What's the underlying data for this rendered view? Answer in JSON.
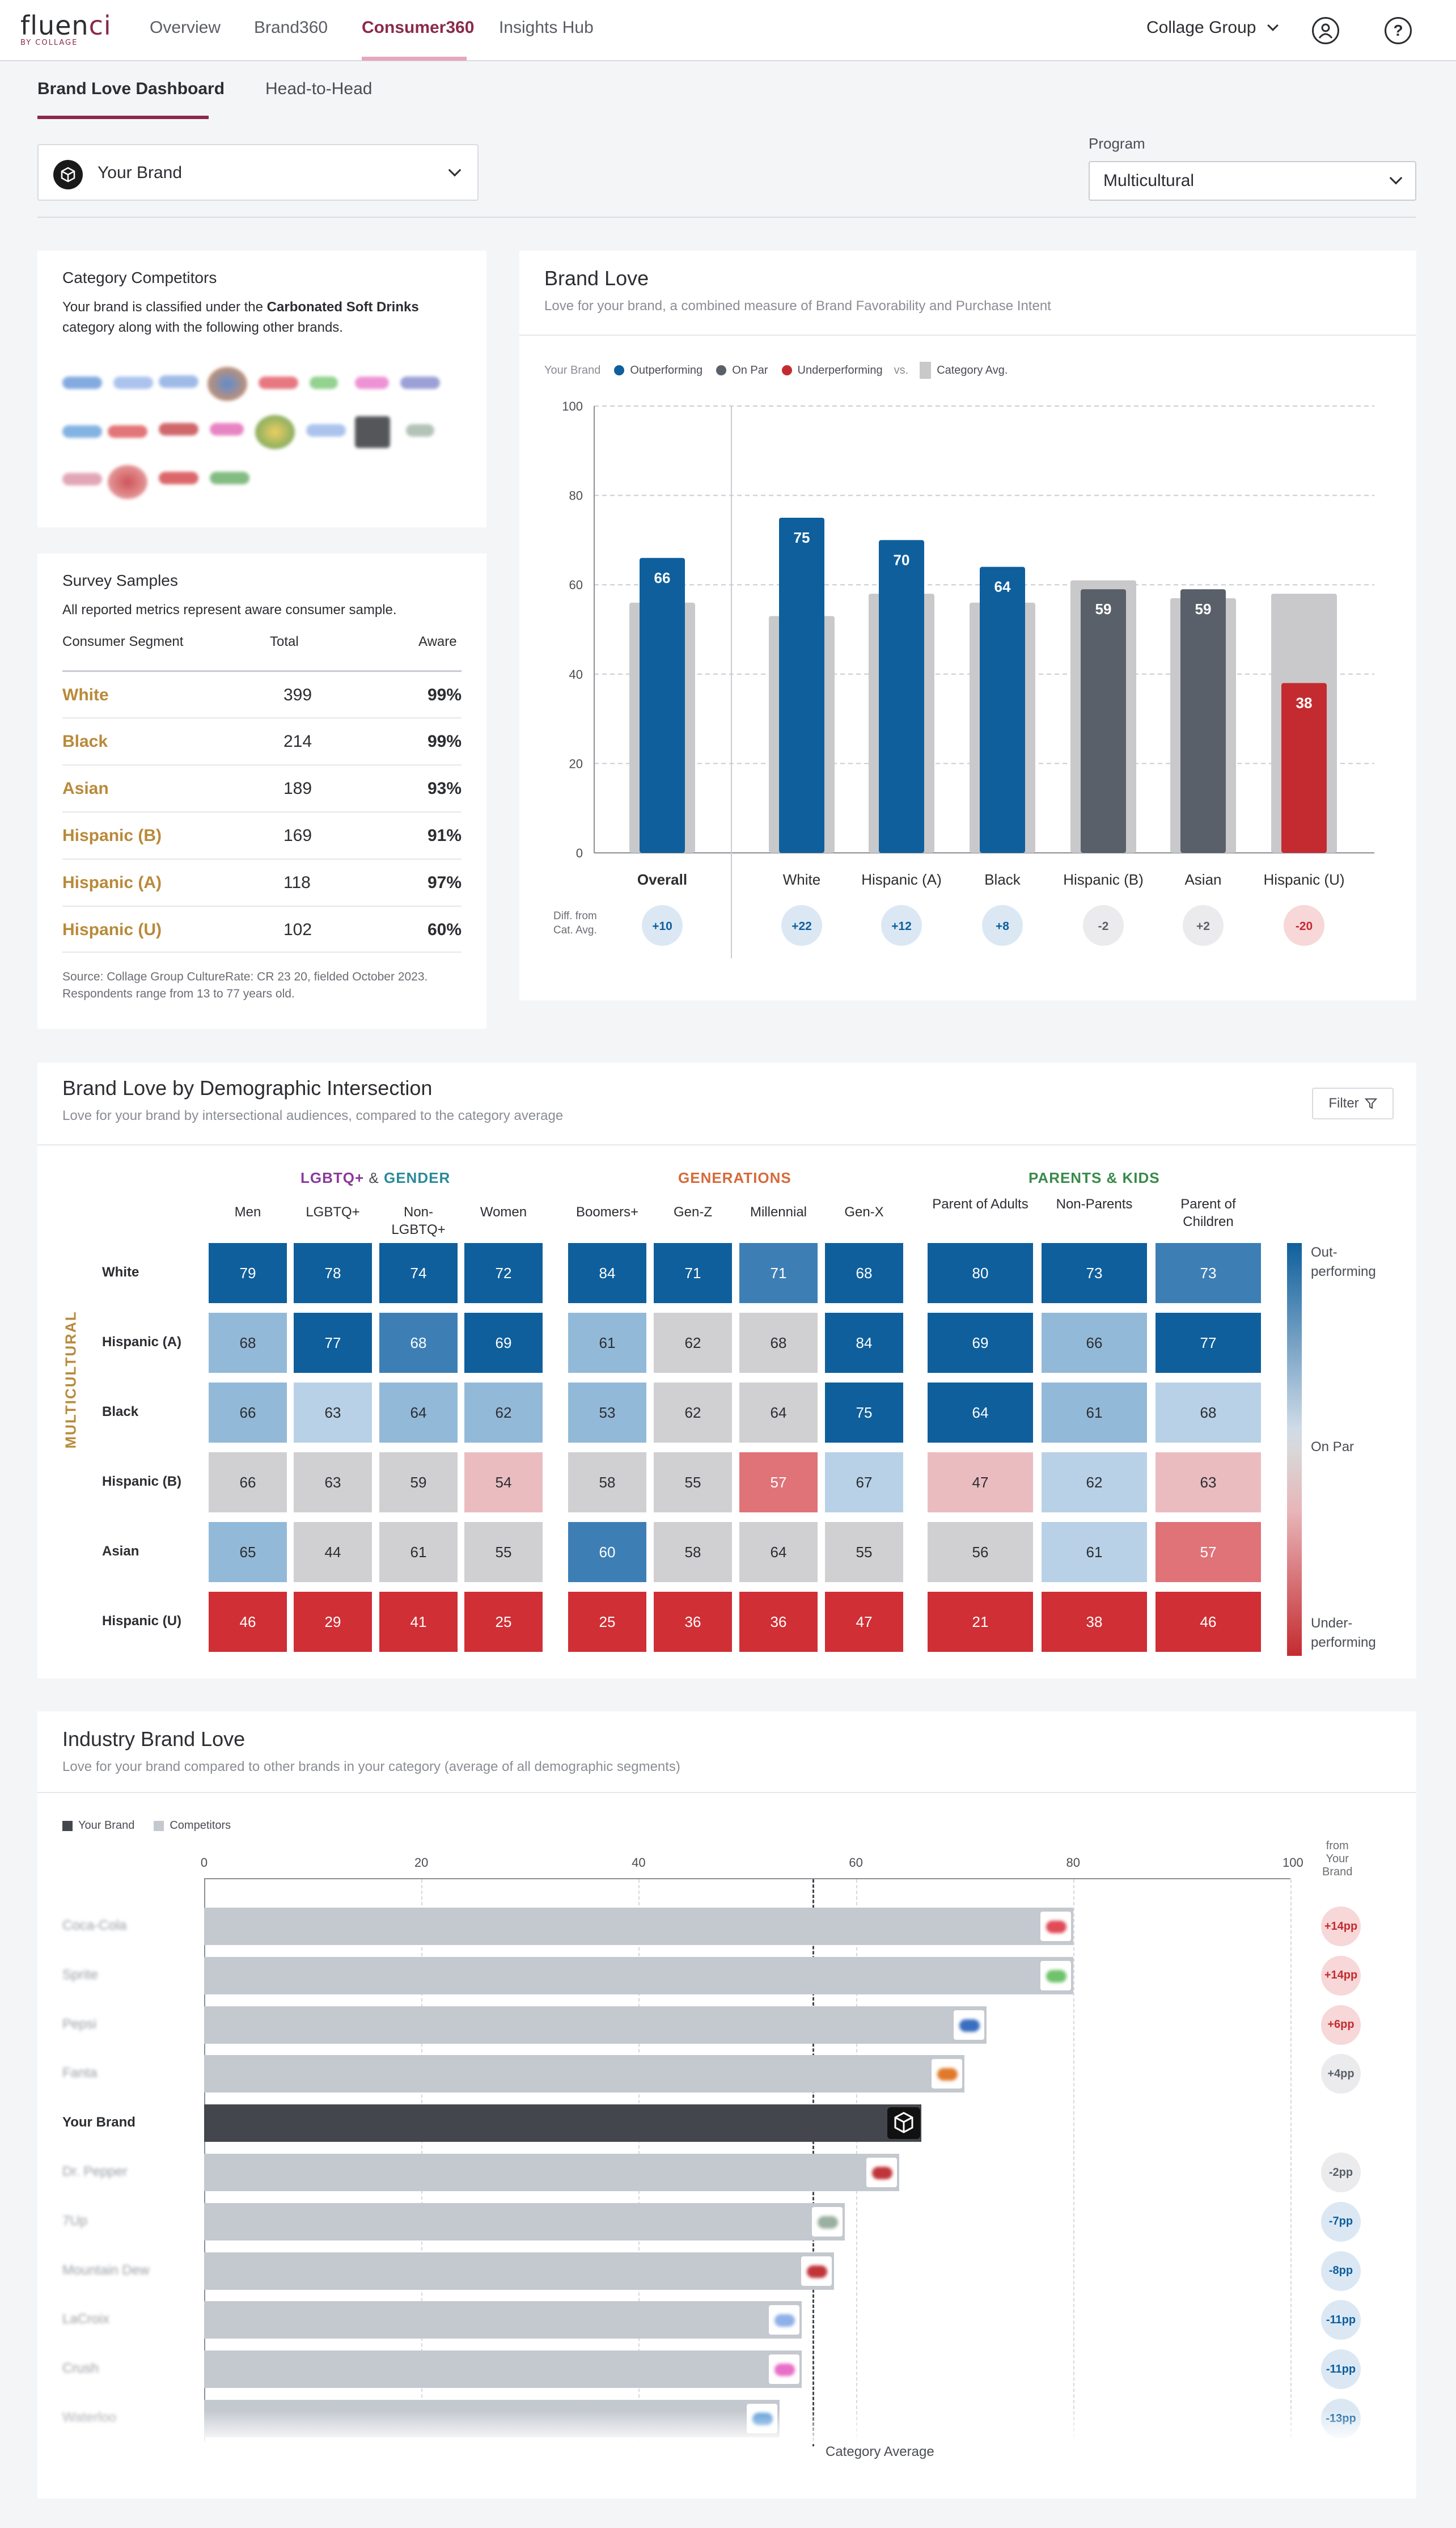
{
  "topnav": {
    "logo_main": "fluen",
    "logo_accent": "ci",
    "logo_tag": "BY COLLAGE",
    "links": [
      "Overview",
      "Brand360",
      "Consumer360",
      "Insights Hub"
    ],
    "group_label": "Collage Group",
    "user_icon": "user-circle-icon",
    "help_icon": "help-circle-icon"
  },
  "subnav": {
    "tabs": [
      "Brand Love Dashboard",
      "Head-to-Head"
    ]
  },
  "brand_select": {
    "value": "Your Brand",
    "icon": "cube-icon"
  },
  "program": {
    "label": "Program",
    "value": "Multicultural"
  },
  "category_card": {
    "title": "Category Competitors",
    "text_before": "Your brand is classified under the",
    "category": "Carbonated Soft Drinks",
    "text_after": "category along with the following other brands."
  },
  "survey_card": {
    "title": "Survey Samples",
    "subtitle": "All reported metrics represent aware consumer sample.",
    "headers": [
      "Consumer Segment",
      "Total",
      "Aware"
    ],
    "rows": [
      {
        "segment": "White",
        "total": "399",
        "aware": "99%"
      },
      {
        "segment": "Black",
        "total": "214",
        "aware": "99%"
      },
      {
        "segment": "Asian",
        "total": "189",
        "aware": "93%"
      },
      {
        "segment": "Hispanic (B)",
        "total": "169",
        "aware": "91%"
      },
      {
        "segment": "Hispanic (A)",
        "total": "118",
        "aware": "97%"
      },
      {
        "segment": "Hispanic (U)",
        "total": "102",
        "aware": "60%"
      }
    ],
    "source": "Source: Collage Group CultureRate: CR 23 20, fielded October 2023.",
    "range": "Respondents range from 13 to 77 years old."
  },
  "brand_love": {
    "title": "Brand Love",
    "subtitle": "Love for your brand, a combined measure of Brand Favorability and Purchase Intent",
    "legend": {
      "your_brand": "Your Brand",
      "out": "Outperforming",
      "par": "On Par",
      "under": "Underperforming",
      "vs": "vs.",
      "cat": "Category Avg."
    },
    "diff_label_1": "Diff. from",
    "diff_label_2": "Cat. Avg.",
    "colors": {
      "out": "#0f5f9c",
      "par": "#5a6069",
      "under": "#c42b30",
      "cat": "#c9c9cb"
    }
  },
  "chart_data": {
    "type": "bar",
    "categories": [
      "Overall",
      "White",
      "Hispanic (A)",
      "Black",
      "Hispanic (B)",
      "Asian",
      "Hispanic (U)"
    ],
    "series": [
      {
        "name": "Your Brand",
        "values": [
          66,
          75,
          70,
          64,
          59,
          59,
          38
        ],
        "status": [
          "out",
          "out",
          "out",
          "out",
          "par",
          "par",
          "under"
        ]
      },
      {
        "name": "Category Avg.",
        "values": [
          56,
          53,
          58,
          56,
          61,
          57,
          58
        ]
      }
    ],
    "diff": [
      "+10",
      "+22",
      "+12",
      "+8",
      "-2",
      "+2",
      "-20"
    ],
    "yticks": [
      "0",
      "20",
      "40",
      "60",
      "80",
      "100"
    ],
    "ylim": [
      0,
      100
    ]
  },
  "heatmap": {
    "title": "Brand Love by Demographic Intersection",
    "subtitle": "Love for your brand by intersectional audiences, compared to the category average",
    "filter_label": "Filter",
    "group_lgbt": "LGBTQ+",
    "group_amp": "&",
    "group_gender": "GENDER",
    "group_gen": "GENERATIONS",
    "group_parents": "PARENTS & KIDS",
    "side_label": "MULTICULTURAL",
    "columns": [
      "Men",
      "LGBTQ+",
      "Non-LGBTQ+",
      "Women",
      "Boomers+",
      "Gen-Z",
      "Millennial",
      "Gen-X",
      "Parent of Adults",
      "Non-Parents",
      "Parent of Children"
    ],
    "rows": [
      {
        "label": "White",
        "values": [
          "79",
          "78",
          "74",
          "72",
          "84",
          "71",
          "71",
          "68",
          "80",
          "73",
          "73"
        ]
      },
      {
        "label": "Hispanic (A)",
        "values": [
          "68",
          "77",
          "68",
          "69",
          "61",
          "62",
          "68",
          "84",
          "69",
          "66",
          "77"
        ]
      },
      {
        "label": "Black",
        "values": [
          "66",
          "63",
          "64",
          "62",
          "53",
          "62",
          "64",
          "75",
          "64",
          "61",
          "68"
        ]
      },
      {
        "label": "Hispanic (B)",
        "values": [
          "66",
          "63",
          "59",
          "54",
          "58",
          "55",
          "57",
          "67",
          "47",
          "62",
          "63"
        ]
      },
      {
        "label": "Asian",
        "values": [
          "65",
          "44",
          "61",
          "55",
          "60",
          "58",
          "64",
          "55",
          "56",
          "61",
          "57"
        ]
      },
      {
        "label": "Hispanic (U)",
        "values": [
          "46",
          "29",
          "41",
          "25",
          "25",
          "36",
          "36",
          "47",
          "21",
          "38",
          "46"
        ]
      }
    ],
    "levels": [
      [
        4,
        4,
        4,
        4,
        4,
        4,
        3,
        4,
        4,
        4,
        3
      ],
      [
        2,
        4,
        3,
        4,
        2,
        0,
        0,
        4,
        4,
        2,
        4
      ],
      [
        2,
        1,
        2,
        2,
        2,
        0,
        0,
        4,
        4,
        2,
        1
      ],
      [
        0,
        0,
        0,
        -1,
        0,
        0,
        -2,
        1,
        -1,
        1,
        -1
      ],
      [
        2,
        0,
        0,
        0,
        3,
        0,
        0,
        0,
        0,
        1,
        -2
      ],
      [
        -3,
        -3,
        -3,
        -3,
        -3,
        -3,
        -3,
        -3,
        -3,
        -3,
        -3
      ]
    ],
    "scale_top": "Out-\nperforming",
    "scale_mid": "On Par",
    "scale_bot": "Under-\nperforming"
  },
  "industry": {
    "title": "Industry Brand Love",
    "subtitle": "Love for your brand compared to other brands in your category (average of all demographic segments)",
    "legend_own": "Your Brand",
    "legend_comp": "Competitors",
    "from_label": "from\nYour\nBrand",
    "xticks": [
      "0",
      "20",
      "40",
      "60",
      "80",
      "100"
    ],
    "cat_avg_label": "Category Average",
    "brands": [
      {
        "name": "Coca-Cola",
        "value": 80,
        "diff": "+14pp",
        "own": false
      },
      {
        "name": "Sprite",
        "value": 80,
        "diff": "+14pp",
        "own": false
      },
      {
        "name": "Pepsi",
        "value": 72,
        "diff": "+6pp",
        "own": false
      },
      {
        "name": "Fanta",
        "value": 70,
        "diff": "+4pp",
        "own": false
      },
      {
        "name": "Your Brand",
        "value": 66,
        "diff": "",
        "own": true
      },
      {
        "name": "Dr. Pepper",
        "value": 64,
        "diff": "-2pp",
        "own": false
      },
      {
        "name": "7Up",
        "value": 59,
        "diff": "-7pp",
        "own": false
      },
      {
        "name": "Mountain Dew",
        "value": 58,
        "diff": "-8pp",
        "own": false
      },
      {
        "name": "LaCroix",
        "value": 55,
        "diff": "-11pp",
        "own": false
      },
      {
        "name": "Crush",
        "value": 55,
        "diff": "-11pp",
        "own": false
      },
      {
        "name": "Waterloo",
        "value": 53,
        "diff": "-13pp",
        "own": false
      }
    ],
    "category_avg": 56
  }
}
